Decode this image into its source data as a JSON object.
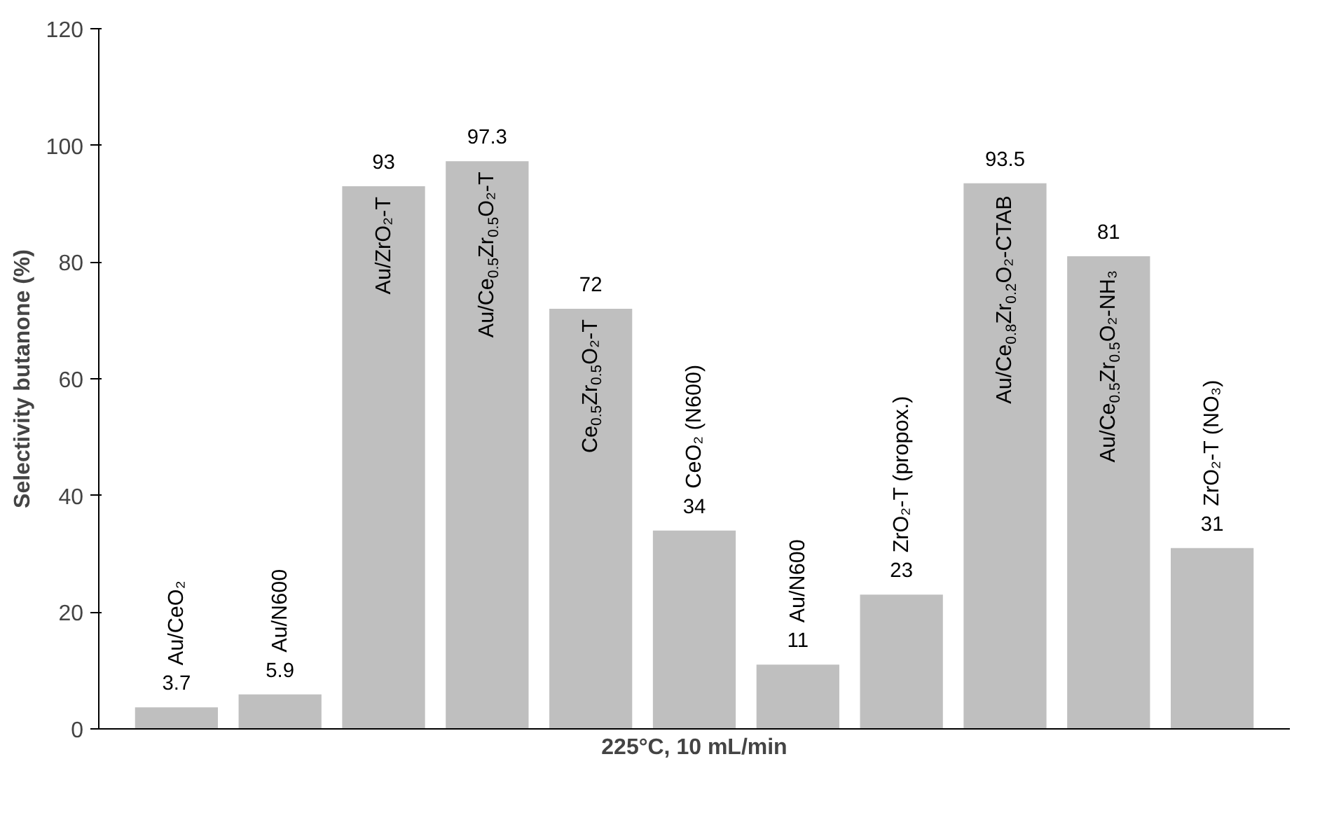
{
  "chart_data": {
    "type": "bar",
    "xlabel": "225°C, 10 mL/min",
    "ylabel": "Selectivity butanone (%)",
    "categories": [
      "Au/CeO₂",
      "Au/N600",
      "Au/ZrO₂-T",
      "Au/Ce$_{0.5}$Zr$_{0.5}$O₂-T",
      "Ce$_{0.5}$Zr$_{0.5}$O₂-T",
      "CeO₂ (N600)",
      "Au/N600",
      "ZrO₂-T (propox.)",
      "Au/Ce$_{0.8}$Zr$_{0.2}$O₂-CTAB",
      "Au/Ce$_{0.5}$Zr$_{0.5}$O₂-NH₃",
      "ZrO₂-T (NO₃)"
    ],
    "values": [
      3.7,
      5.9,
      93,
      97.3,
      72,
      34,
      11,
      23,
      93.5,
      81,
      31
    ],
    "color": "#bfbfbf",
    "data_labels": true,
    "ylim": [
      0,
      120
    ],
    "yticks": [
      0,
      20,
      40,
      60,
      80,
      100,
      120
    ],
    "grid": false
  }
}
